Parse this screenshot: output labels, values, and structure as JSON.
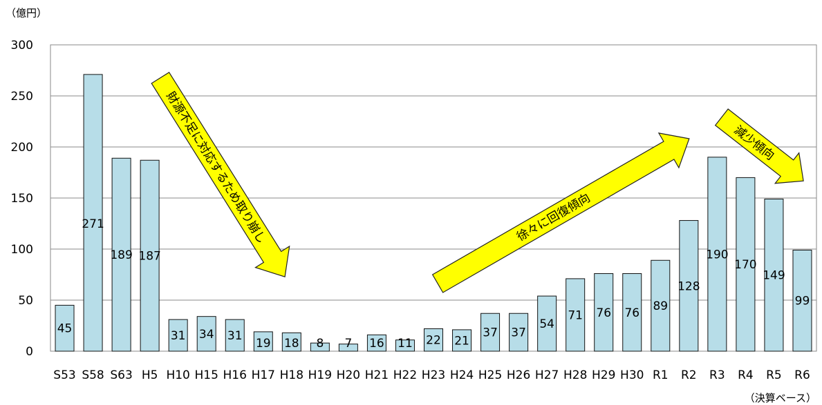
{
  "chart_data": {
    "type": "bar",
    "unit_label": "（億円）",
    "basis_label": "（決算ベース）",
    "categories": [
      "S53",
      "S58",
      "S63",
      "H5",
      "H10",
      "H15",
      "H16",
      "H17",
      "H18",
      "H19",
      "H20",
      "H21",
      "H22",
      "H23",
      "H24",
      "H25",
      "H26",
      "H27",
      "H28",
      "H29",
      "H30",
      "R1",
      "R2",
      "R3",
      "R4",
      "R5",
      "R6"
    ],
    "values": [
      45,
      271,
      189,
      187,
      31,
      34,
      31,
      19,
      18,
      8,
      7,
      16,
      11,
      22,
      21,
      37,
      37,
      54,
      71,
      76,
      76,
      89,
      128,
      190,
      170,
      149,
      99
    ],
    "ylim": [
      0,
      300
    ],
    "yticks": [
      0,
      50,
      100,
      150,
      200,
      250,
      300
    ],
    "grid": true,
    "bar_color": "#b7dde8",
    "annotations": [
      {
        "text": "財源不足に対応するため取り崩し",
        "color": "#ffff00"
      },
      {
        "text": "徐々に回復傾向",
        "color": "#ffff00"
      },
      {
        "text": "減少傾向",
        "color": "#ffff00"
      }
    ]
  }
}
